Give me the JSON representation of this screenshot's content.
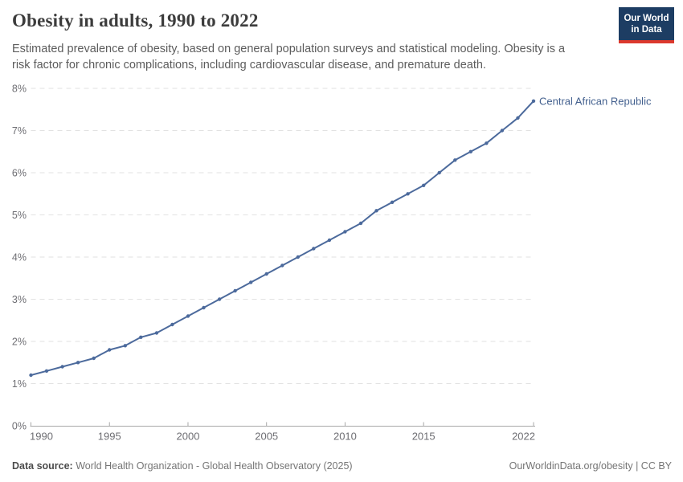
{
  "header": {
    "title": "Obesity in adults, 1990 to 2022",
    "subtitle": "Estimated prevalence of obesity, based on general population surveys and statistical modeling. Obesity is a risk factor for chronic complications, including cardiovascular disease, and premature death."
  },
  "logo": {
    "line1": "Our World",
    "line2": "in Data"
  },
  "chart_data": {
    "type": "line",
    "title": "Obesity in adults, 1990 to 2022",
    "xlabel": "",
    "ylabel": "",
    "xlim": [
      1990,
      2022
    ],
    "ylim": [
      0,
      8
    ],
    "xticks": [
      1990,
      1995,
      2000,
      2005,
      2010,
      2015,
      2022
    ],
    "yticks": [
      0,
      1,
      2,
      3,
      4,
      5,
      6,
      7,
      8
    ],
    "ytick_suffix": "%",
    "grid": "horizontal-dashed",
    "legend_position": "end-of-line-label",
    "series": [
      {
        "name": "Central African Republic",
        "x": [
          1990,
          1991,
          1992,
          1993,
          1994,
          1995,
          1996,
          1997,
          1998,
          1999,
          2000,
          2001,
          2002,
          2003,
          2004,
          2005,
          2006,
          2007,
          2008,
          2009,
          2010,
          2011,
          2012,
          2013,
          2014,
          2015,
          2016,
          2017,
          2018,
          2019,
          2020,
          2021,
          2022
        ],
        "values": [
          1.2,
          1.3,
          1.4,
          1.5,
          1.6,
          1.8,
          1.9,
          2.1,
          2.2,
          2.4,
          2.6,
          2.8,
          3.0,
          3.2,
          3.4,
          3.6,
          3.8,
          4.0,
          4.2,
          4.4,
          4.6,
          4.8,
          5.1,
          5.3,
          5.5,
          5.7,
          6.0,
          6.3,
          6.5,
          6.7,
          7.0,
          7.3,
          7.7
        ]
      }
    ]
  },
  "footer": {
    "source_label": "Data source:",
    "source_value": " World Health Organization - Global Health Observatory (2025)",
    "credit": "OurWorldinData.org/obesity | CC BY"
  },
  "colors": {
    "line": "#4C6A9C",
    "end_label": "#44618f",
    "grid": "#e2e2e2",
    "axis": "#a8a8a8",
    "tick_label": "#6e6e73",
    "title": "#3c3c3c",
    "subtitle": "#5c5c5c",
    "footer_label": "#4c4c4c",
    "footer_text": "#757575",
    "logo_bg": "#1d3d63",
    "logo_stripe": "#dc392d"
  }
}
